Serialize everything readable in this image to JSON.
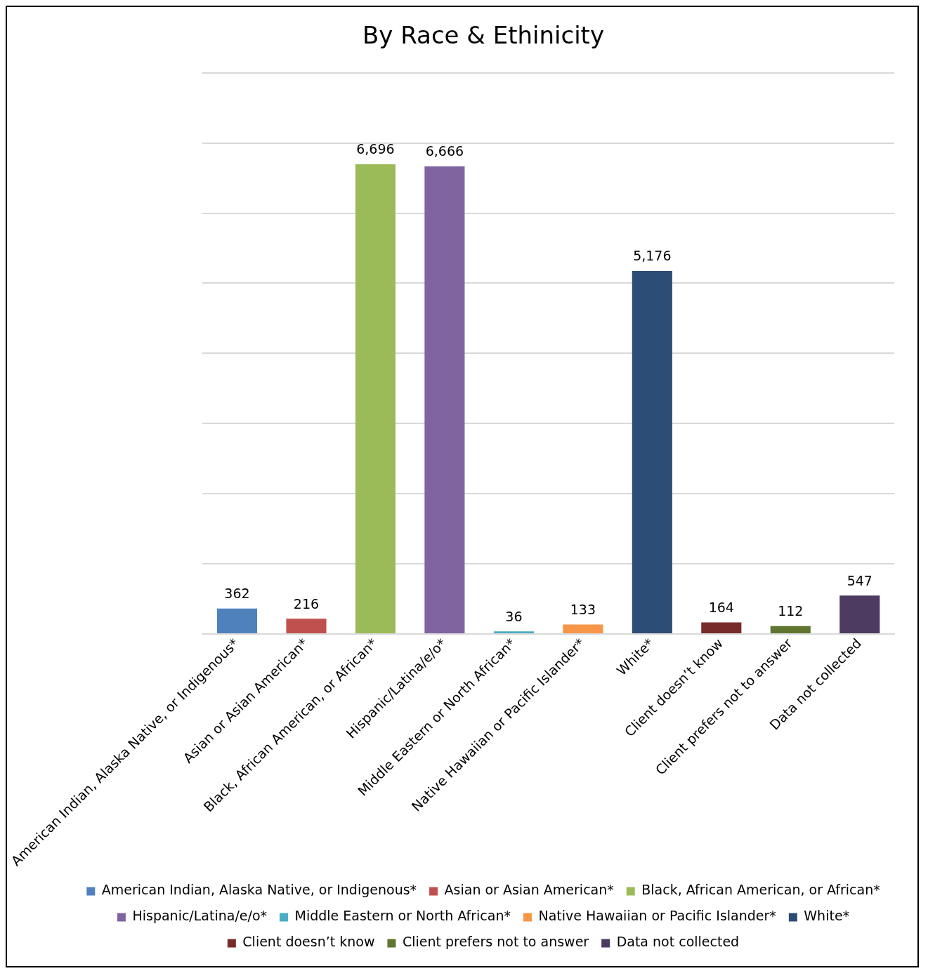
{
  "chart_data": {
    "type": "bar",
    "title": "By Race & Ethinicity",
    "categories": [
      "American Indian, Alaska Native, or Indigenous*",
      "Asian or Asian American*",
      "Black, African American, or African*",
      "Hispanic/Latina/e/o*",
      "Middle Eastern or North African*",
      "Native Hawaiian or Pacific Islander*",
      "White*",
      "Client doesn’t know",
      "Client prefers not to answer",
      "Data not collected"
    ],
    "series": [
      {
        "name": "American Indian, Alaska Native, or Indigenous*",
        "color": "#4f81bd",
        "values": [
          362,
          null,
          null,
          null,
          null,
          null,
          null,
          null,
          null,
          null
        ],
        "value_labels": [
          "362",
          null,
          null,
          null,
          null,
          null,
          null,
          null,
          null,
          null
        ]
      },
      {
        "name": "Asian or Asian American*",
        "color": "#c0504d",
        "values": [
          null,
          216,
          null,
          null,
          null,
          null,
          null,
          null,
          null,
          null
        ],
        "value_labels": [
          null,
          "216",
          null,
          null,
          null,
          null,
          null,
          null,
          null,
          null
        ]
      },
      {
        "name": "Black, African American, or African*",
        "color": "#9bbb59",
        "values": [
          null,
          null,
          6696,
          null,
          null,
          null,
          null,
          null,
          null,
          null
        ],
        "value_labels": [
          null,
          null,
          "6,696",
          null,
          null,
          null,
          null,
          null,
          null,
          null
        ]
      },
      {
        "name": "Hispanic/Latina/e/o*",
        "color": "#8064a2",
        "values": [
          null,
          null,
          null,
          6666,
          null,
          null,
          null,
          null,
          null,
          null
        ],
        "value_labels": [
          null,
          null,
          null,
          "6,666",
          null,
          null,
          null,
          null,
          null,
          null
        ]
      },
      {
        "name": "Middle Eastern or North African*",
        "color": "#4bacc6",
        "values": [
          null,
          null,
          null,
          null,
          36,
          null,
          null,
          null,
          null,
          null
        ],
        "value_labels": [
          null,
          null,
          null,
          null,
          "36",
          null,
          null,
          null,
          null,
          null
        ]
      },
      {
        "name": "Native Hawaiian or Pacific Islander*",
        "color": "#f79646",
        "values": [
          null,
          null,
          null,
          null,
          null,
          133,
          null,
          null,
          null,
          null
        ],
        "value_labels": [
          null,
          null,
          null,
          null,
          null,
          "133",
          null,
          null,
          null,
          null
        ]
      },
      {
        "name": "White*",
        "color": "#2c4d75",
        "values": [
          null,
          null,
          null,
          null,
          null,
          null,
          5176,
          null,
          null,
          null
        ],
        "value_labels": [
          null,
          null,
          null,
          null,
          null,
          null,
          "5,176",
          null,
          null,
          null
        ]
      },
      {
        "name": "Client doesn’t know",
        "color": "#772c2a",
        "values": [
          null,
          null,
          null,
          null,
          null,
          null,
          null,
          164,
          null,
          null
        ],
        "value_labels": [
          null,
          null,
          null,
          null,
          null,
          null,
          null,
          "164",
          null,
          null
        ]
      },
      {
        "name": "Client prefers not to answer",
        "color": "#5f7530",
        "values": [
          null,
          null,
          null,
          null,
          null,
          null,
          null,
          null,
          112,
          null
        ],
        "value_labels": [
          null,
          null,
          null,
          null,
          null,
          null,
          null,
          null,
          "112",
          null
        ]
      },
      {
        "name": "Data not collected",
        "color": "#4d3b62",
        "values": [
          null,
          null,
          null,
          null,
          null,
          null,
          null,
          null,
          null,
          547
        ],
        "value_labels": [
          null,
          null,
          null,
          null,
          null,
          null,
          null,
          null,
          null,
          "547"
        ]
      }
    ],
    "ylim": [
      0,
      8000
    ],
    "yticks": [
      {
        "value": 0,
        "label": null
      },
      {
        "value": 1000,
        "label": null
      },
      {
        "value": 2000,
        "label": null
      },
      {
        "value": 3000,
        "label": null
      },
      {
        "value": 4000,
        "label": null
      },
      {
        "value": 5000,
        "label": null
      },
      {
        "value": 6000,
        "label": null
      },
      {
        "value": 7000,
        "label": null
      },
      {
        "value": 8000,
        "label": null
      }
    ],
    "grid": "y",
    "tick_labels": "x",
    "legend": "bottom"
  }
}
